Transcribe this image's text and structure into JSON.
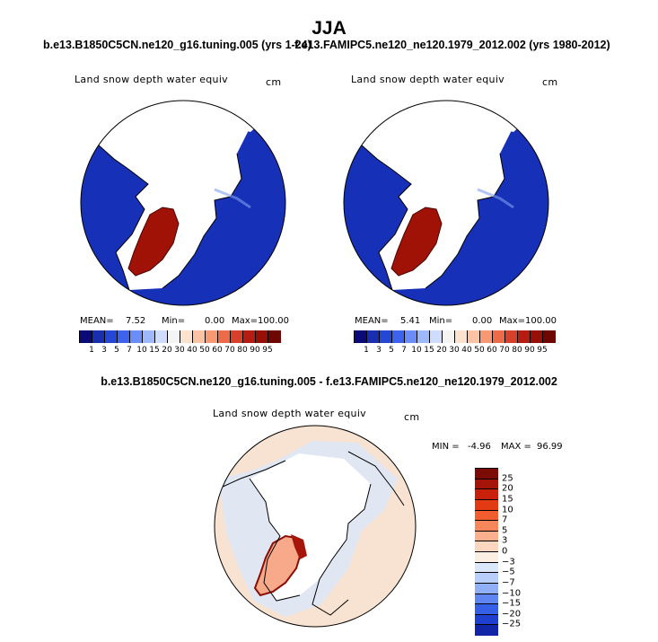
{
  "figure": {
    "season": "JJA",
    "case_title": "b.e13.B1850C5CN.ne120_g16.tuning.005 (yrs 1-24)",
    "control_title": "f.e13.FAMIPC5.ne120_ne120.1979_2012.002 (yrs 1980-2012)",
    "diff_title": "b.e13.B1850C5CN.ne120_g16.tuning.005 - f.e13.FAMIPC5.ne120_ne120.1979_2012.002"
  },
  "panels": {
    "case": {
      "variable": "Land snow depth water equiv",
      "units": "cm",
      "stats": {
        "mean_label": "MEAN=",
        "mean": "7.52",
        "min_label": "Min=",
        "min": "0.00",
        "max_label": "Max=",
        "max": "100.00"
      }
    },
    "control": {
      "variable": "Land snow depth water equiv",
      "units": "cm",
      "stats": {
        "mean_label": "MEAN=",
        "mean": "5.41",
        "min_label": "Min=",
        "min": "0.00",
        "max_label": "Max=",
        "max": "100.00"
      }
    },
    "diff": {
      "variable": "Land snow depth water equiv",
      "units": "cm",
      "stats": {
        "min_label": "MIN =",
        "min": "-4.96",
        "max_label": "MAX =",
        "max": "96.99"
      }
    }
  },
  "colorbar_abs": {
    "ticks": [
      "1",
      "3",
      "5",
      "7",
      "10",
      "15",
      "20",
      "30",
      "40",
      "50",
      "60",
      "70",
      "80",
      "90",
      "95"
    ],
    "colors": [
      "#0a0a78",
      "#1a2fb0",
      "#2547d6",
      "#3d63ee",
      "#6a8df7",
      "#9fb8fb",
      "#cfdcfc",
      "#f4f4f4",
      "#fce3cf",
      "#fbc3a3",
      "#f79a74",
      "#ec6c4a",
      "#d7402a",
      "#b71c13",
      "#961008",
      "#6e0604"
    ]
  },
  "colorbar_diff": {
    "ticks": [
      "25",
      "20",
      "15",
      "10",
      "7",
      "5",
      "3",
      "0",
      "−3",
      "−5",
      "−7",
      "−10",
      "−15",
      "−20",
      "−25"
    ],
    "colors": [
      "#7a0b05",
      "#a51408",
      "#c9200c",
      "#e23b14",
      "#f15d2e",
      "#f7865a",
      "#fab08c",
      "#fcd6bf",
      "#fbeee2",
      "#dbe8fb",
      "#b8cff9",
      "#8fb0f6",
      "#5f86f0",
      "#3560e6",
      "#1f3fcf",
      "#1225a6"
    ]
  },
  "maps": {
    "ocean_abs": "#1630b8",
    "ice": "#ffffff",
    "greenland_abs": "#a01206",
    "diff_bg": "#f8e3d3",
    "diff_blue": "#dce7f7",
    "diff_red": "#a5150a"
  }
}
